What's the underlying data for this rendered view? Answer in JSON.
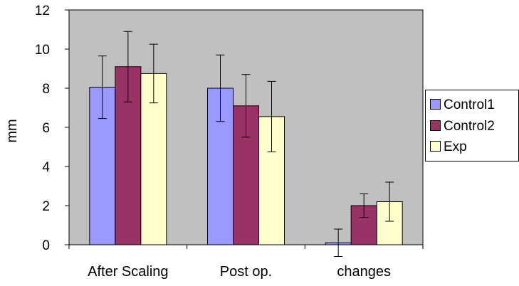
{
  "chart_data": {
    "type": "bar",
    "title": "",
    "xlabel": "",
    "ylabel": "mm",
    "ylim": [
      0,
      12
    ],
    "yticks": [
      "0",
      "2",
      "4",
      "6",
      "8",
      "10",
      "12"
    ],
    "categories": [
      "After Scaling",
      "Post op.",
      "changes"
    ],
    "series": [
      {
        "name": "Control1",
        "color": "#9999ff",
        "values": [
          8.05,
          8.0,
          0.1
        ],
        "errors": [
          1.6,
          1.7,
          0.7
        ]
      },
      {
        "name": "Control2",
        "color": "#993366",
        "values": [
          9.1,
          7.1,
          2.0
        ],
        "errors": [
          1.8,
          1.6,
          0.6
        ]
      },
      {
        "name": "Exp",
        "color": "#ffffcc",
        "values": [
          8.75,
          6.55,
          2.2
        ],
        "errors": [
          1.5,
          1.8,
          1.0
        ]
      }
    ],
    "plot_background": "#c0c0c0",
    "grid": false,
    "legend_position": "right",
    "error_bars": true
  }
}
